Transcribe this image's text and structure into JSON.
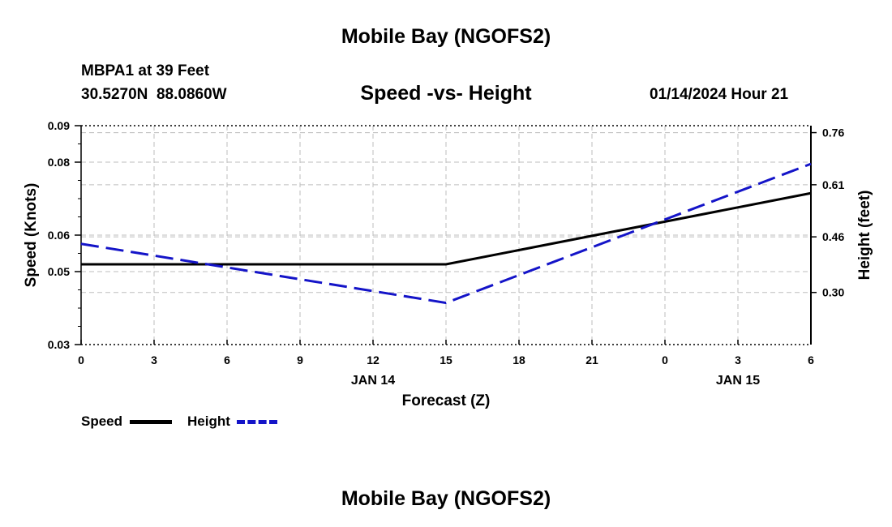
{
  "header": {
    "title": "Mobile Bay (NGOFS2)",
    "station": "MBPA1 at 39 Feet",
    "coords": "30.5270N  88.0860W",
    "datetime": "01/14/2024 Hour 21"
  },
  "footer": {
    "title": "Mobile Bay (NGOFS2)"
  },
  "legend": {
    "speed_label": "Speed",
    "height_label": "Height"
  },
  "colors": {
    "speed": "#000000",
    "height": "#1414c8",
    "grid": "#bdbdbd"
  },
  "chart_data": {
    "type": "line",
    "title": "Speed -vs- Height",
    "xlabel": "Forecast (Z)",
    "ylabel": "Speed (Knots)",
    "y2label": "Height (feet)",
    "x": [
      0,
      15,
      30
    ],
    "x_tick_labels": [
      "0",
      "3",
      "6",
      "9",
      "12",
      "15",
      "18",
      "21",
      "0",
      "3",
      "6"
    ],
    "date_labels": [
      {
        "text": "JAN 14",
        "at_index": 4
      },
      {
        "text": "JAN 15",
        "at_index": 9
      }
    ],
    "ylim": [
      0.03,
      0.09
    ],
    "y_ticks": [
      0.03,
      0.05,
      0.06,
      0.08,
      0.09
    ],
    "y_tick_labels": [
      "0.03",
      "0.05",
      "0.06",
      "0.08",
      "0.09"
    ],
    "y2lim": [
      0.15,
      0.78
    ],
    "y2_ticks": [
      0.3,
      0.46,
      0.61,
      0.76
    ],
    "y2_tick_labels": [
      "0.30",
      "0.46",
      "0.61",
      "0.76"
    ],
    "grid": true,
    "legend_position": "bottom-left",
    "series": [
      {
        "name": "Speed",
        "axis": "left",
        "style": "solid",
        "x": [
          0,
          15,
          30
        ],
        "values": [
          0.052,
          0.052,
          0.0715
        ]
      },
      {
        "name": "Height",
        "axis": "right",
        "style": "dashed",
        "x": [
          0,
          15,
          30
        ],
        "values": [
          0.44,
          0.27,
          0.67
        ]
      }
    ]
  }
}
